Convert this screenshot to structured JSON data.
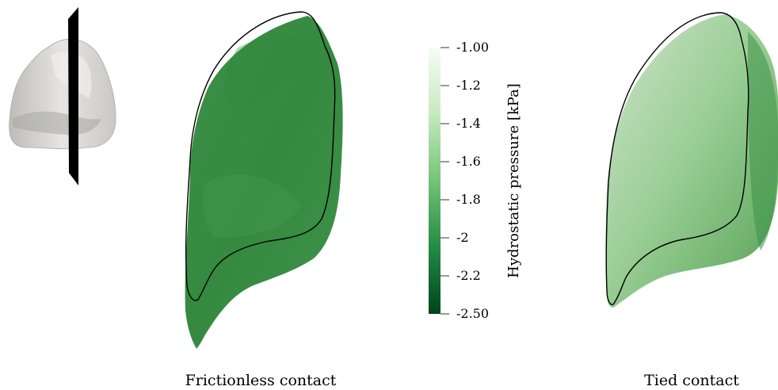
{
  "panels": [
    {
      "caption": "Frictionless contact",
      "fill": "#3f8f48"
    },
    {
      "caption": "Tied contact",
      "fill": "#8cc48e"
    }
  ],
  "colorbar": {
    "label": "Hydrostatic pressure [kPa]",
    "ticks": [
      "-1.00",
      "-1.2",
      "-1.4",
      "-1.6",
      "-1.8",
      "-2",
      "-2.2",
      "-2.50"
    ],
    "colors": {
      "top": "#f7fcf5",
      "mid": "#74c476",
      "bottom": "#00441b"
    }
  },
  "inset": {
    "surface_color": "#d9d8d4",
    "plane_color": "#000000"
  }
}
